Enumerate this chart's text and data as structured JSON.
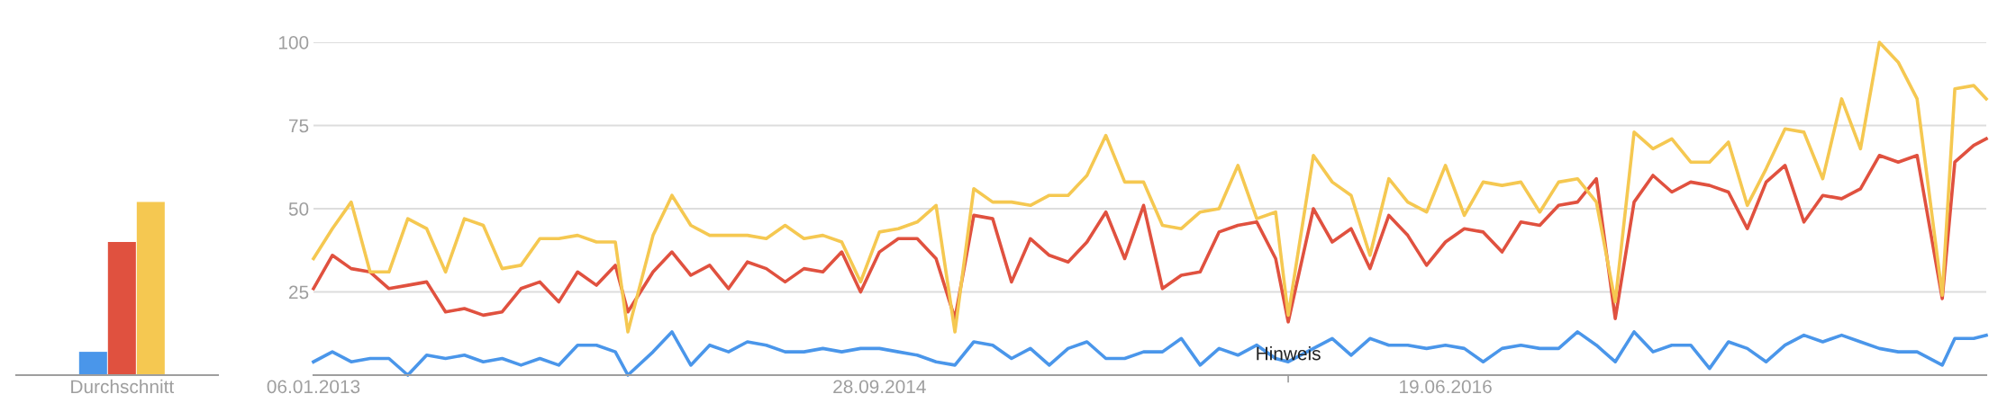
{
  "chart_data": [
    {
      "type": "bar",
      "categories": [
        "Durchschnitt"
      ],
      "ylim": [
        0,
        100
      ],
      "tick_labels": "x",
      "grid": false,
      "legend": false,
      "series": [
        {
          "color": "#4a96ea",
          "values": [
            7
          ]
        },
        {
          "color": "#e0513f",
          "values": [
            40
          ]
        },
        {
          "color": "#f5c851",
          "values": [
            52
          ]
        }
      ]
    },
    {
      "type": "line",
      "grid": "y",
      "legend": false,
      "marker": "none",
      "line_style": "solid",
      "xlim": [
        "2013-01-06",
        "2018-02-11"
      ],
      "ylim": [
        0,
        100
      ],
      "yticks": [
        25,
        50,
        75,
        100
      ],
      "xticks": [
        {
          "value": "2013-01-06",
          "label": "06.01.2013"
        },
        {
          "value": "2014-09-28",
          "label": "28.09.2014"
        },
        {
          "value": "2016-06-19",
          "label": "19.06.2016"
        }
      ],
      "annotations": [
        {
          "text": "Hinweis",
          "x": "2015-12-27",
          "y": 6
        }
      ],
      "x": [
        "2013-01-06",
        "2013-01-27",
        "2013-02-17",
        "2013-03-10",
        "2013-03-31",
        "2013-04-21",
        "2013-05-12",
        "2013-06-02",
        "2013-06-23",
        "2013-07-14",
        "2013-08-04",
        "2013-08-25",
        "2013-09-15",
        "2013-10-06",
        "2013-10-27",
        "2013-11-17",
        "2013-12-08",
        "2013-12-22",
        "2014-01-19",
        "2014-02-09",
        "2014-03-02",
        "2014-03-23",
        "2014-04-13",
        "2014-05-04",
        "2014-05-25",
        "2014-06-15",
        "2014-07-06",
        "2014-07-27",
        "2014-08-17",
        "2014-09-07",
        "2014-09-28",
        "2014-10-19",
        "2014-11-09",
        "2014-11-30",
        "2014-12-21",
        "2015-01-11",
        "2015-02-01",
        "2015-02-22",
        "2015-03-15",
        "2015-04-05",
        "2015-04-26",
        "2015-05-17",
        "2015-06-07",
        "2015-06-28",
        "2015-07-19",
        "2015-08-09",
        "2015-08-30",
        "2015-09-20",
        "2015-10-11",
        "2015-11-01",
        "2015-11-22",
        "2015-12-13",
        "2015-12-27",
        "2016-01-24",
        "2016-02-14",
        "2016-03-06",
        "2016-03-27",
        "2016-04-17",
        "2016-05-08",
        "2016-05-29",
        "2016-06-19",
        "2016-07-10",
        "2016-07-31",
        "2016-08-21",
        "2016-09-11",
        "2016-10-02",
        "2016-10-23",
        "2016-11-13",
        "2016-12-04",
        "2016-12-25",
        "2017-01-15",
        "2017-02-05",
        "2017-02-26",
        "2017-03-19",
        "2017-04-09",
        "2017-04-30",
        "2017-05-21",
        "2017-06-11",
        "2017-07-02",
        "2017-07-23",
        "2017-08-13",
        "2017-09-03",
        "2017-09-24",
        "2017-10-15",
        "2017-11-05",
        "2017-11-26",
        "2017-12-24",
        "2018-01-07",
        "2018-01-28",
        "2018-02-11"
      ],
      "series": [
        {
          "color": "#4a96ea",
          "values": [
            4,
            7,
            4,
            5,
            5,
            0,
            6,
            5,
            6,
            4,
            5,
            3,
            5,
            3,
            9,
            9,
            7,
            0,
            7,
            13,
            3,
            9,
            7,
            10,
            9,
            7,
            7,
            8,
            7,
            8,
            8,
            7,
            6,
            4,
            3,
            10,
            9,
            5,
            8,
            3,
            8,
            10,
            5,
            5,
            7,
            7,
            11,
            3,
            8,
            6,
            9,
            5,
            4,
            8,
            11,
            6,
            11,
            9,
            9,
            8,
            9,
            8,
            4,
            8,
            9,
            8,
            8,
            13,
            9,
            4,
            13,
            7,
            9,
            9,
            2,
            10,
            8,
            4,
            9,
            12,
            10,
            12,
            10,
            8,
            7,
            7,
            3,
            11,
            11,
            12
          ]
        },
        {
          "color": "#e0513f",
          "values": [
            26,
            36,
            32,
            31,
            26,
            27,
            28,
            19,
            20,
            18,
            19,
            26,
            28,
            22,
            31,
            27,
            33,
            19,
            31,
            37,
            30,
            33,
            26,
            34,
            32,
            28,
            32,
            31,
            37,
            25,
            37,
            41,
            41,
            35,
            17,
            48,
            47,
            28,
            41,
            36,
            34,
            40,
            49,
            35,
            51,
            26,
            30,
            31,
            43,
            45,
            46,
            35,
            16,
            50,
            40,
            44,
            32,
            48,
            42,
            33,
            40,
            44,
            43,
            37,
            46,
            45,
            51,
            52,
            59,
            17,
            52,
            60,
            55,
            58,
            57,
            55,
            44,
            58,
            63,
            46,
            54,
            53,
            56,
            66,
            64,
            66,
            23,
            64,
            69,
            71
          ]
        },
        {
          "color": "#f5c851",
          "values": [
            35,
            44,
            52,
            31,
            31,
            47,
            44,
            31,
            47,
            45,
            32,
            33,
            41,
            41,
            42,
            40,
            40,
            13,
            42,
            54,
            45,
            42,
            42,
            42,
            41,
            45,
            41,
            42,
            40,
            28,
            43,
            44,
            46,
            51,
            13,
            56,
            52,
            52,
            51,
            54,
            54,
            60,
            72,
            58,
            58,
            45,
            44,
            49,
            50,
            63,
            47,
            49,
            18,
            66,
            58,
            54,
            36,
            59,
            52,
            49,
            63,
            48,
            58,
            57,
            58,
            49,
            58,
            59,
            52,
            22,
            73,
            68,
            71,
            64,
            64,
            70,
            51,
            62,
            74,
            73,
            59,
            83,
            68,
            100,
            94,
            83,
            24,
            86,
            87,
            83
          ]
        }
      ]
    }
  ]
}
